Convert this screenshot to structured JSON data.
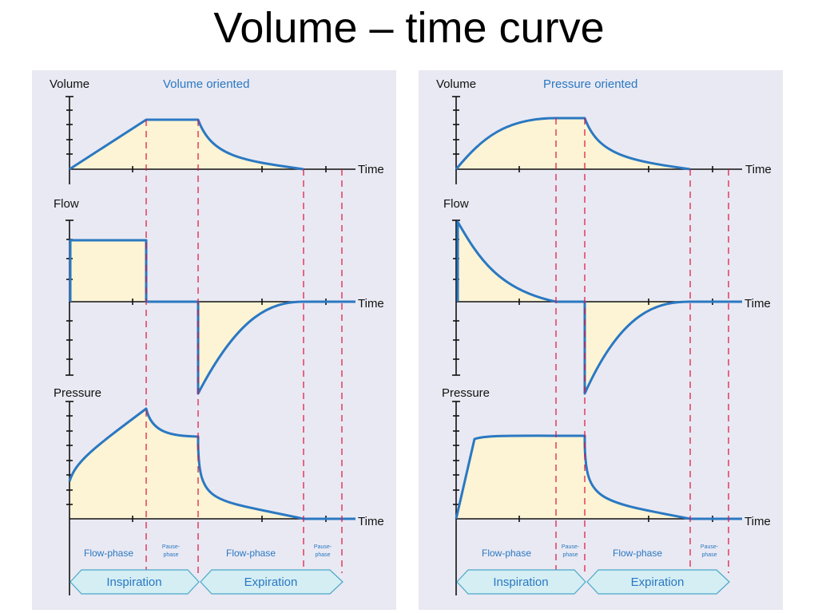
{
  "title": "Volume – time curve",
  "panels": [
    {
      "subtitle": "Volume oriented",
      "labels": {
        "volume": "Volume",
        "flow": "Flow",
        "pressure": "Pressure",
        "time": "Time"
      },
      "phases": {
        "flow_phase": "Flow-phase",
        "pause_phase_line1": "Pause-",
        "pause_phase_line2": "phase"
      },
      "arrows": {
        "inspiration": "Inspiration",
        "expiration": "Expiration"
      }
    },
    {
      "subtitle": "Pressure oriented",
      "labels": {
        "volume": "Volume",
        "flow": "Flow",
        "pressure": "Pressure",
        "time": "Time"
      },
      "phases": {
        "flow_phase": "Flow-phase",
        "pause_phase_line1": "Pause-",
        "pause_phase_line2": "phase"
      },
      "arrows": {
        "inspiration": "Inspiration",
        "expiration": "Expiration"
      }
    }
  ],
  "colors": {
    "panel_bg": "#e9e9f3",
    "curve": "#2a78c2",
    "fill": "#fcf4d4",
    "subtitle": "#2a78c2",
    "phase_text": "#2a78c2",
    "arrow_fill": "#d4eef4",
    "arrow_stroke": "#4aa8c8",
    "divider": "#e0103a"
  }
}
